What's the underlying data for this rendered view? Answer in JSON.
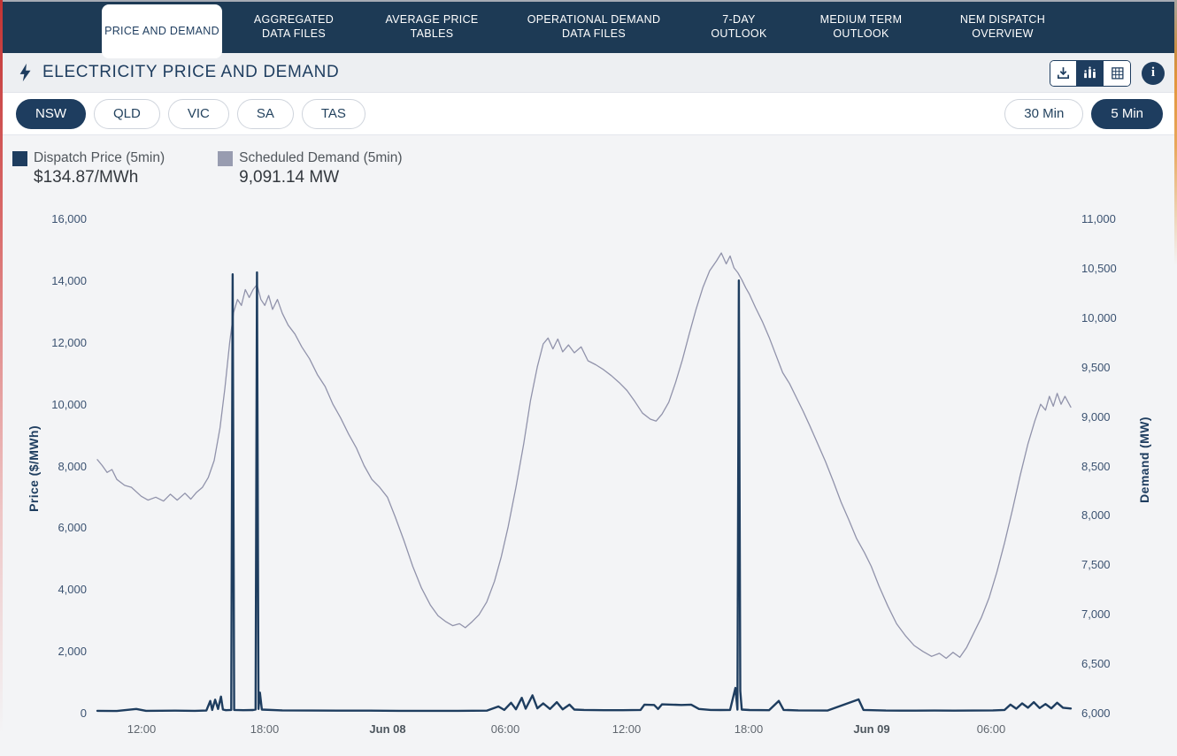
{
  "nav": {
    "tabs": [
      {
        "label": "PRICE AND DEMAND",
        "active": true
      },
      {
        "label": "AGGREGATED DATA FILES",
        "active": false
      },
      {
        "label": "AVERAGE PRICE TABLES",
        "active": false
      },
      {
        "label": "OPERATIONAL DEMAND DATA FILES",
        "active": false
      },
      {
        "label": "7-DAY OUTLOOK",
        "active": false
      },
      {
        "label": "MEDIUM TERM OUTLOOK",
        "active": false
      },
      {
        "label": "NEM DISPATCH OVERVIEW",
        "active": false
      }
    ]
  },
  "header": {
    "title": "ELECTRICITY PRICE AND DEMAND",
    "icons": [
      "download-icon",
      "chart-view-icon",
      "table-view-icon",
      "info-icon"
    ],
    "info_glyph": "i"
  },
  "regions": {
    "items": [
      {
        "label": "NSW",
        "active": true
      },
      {
        "label": "QLD",
        "active": false
      },
      {
        "label": "VIC",
        "active": false
      },
      {
        "label": "SA",
        "active": false
      },
      {
        "label": "TAS",
        "active": false
      }
    ]
  },
  "intervals": {
    "items": [
      {
        "label": "30 Min",
        "active": false
      },
      {
        "label": "5 Min",
        "active": true
      }
    ]
  },
  "legend": {
    "price": {
      "label": "Dispatch Price (5min)",
      "value": "$134.87/MWh",
      "color": "#1e3d5f"
    },
    "demand": {
      "label": "Scheduled Demand (5min)",
      "value": "9,091.14 MW",
      "color": "#989cb0"
    }
  },
  "colors": {
    "navy": "#1e3d5f",
    "nav_bg": "#1d3a55",
    "price_line": "#1e3d5f",
    "demand_line": "#9193ab",
    "chart_bg": "#f3f4f6"
  },
  "chart_data": {
    "type": "line",
    "title": "Electricity price and demand, NSW, 5 min dispatch, Jun 07 - Jun 09",
    "grid": false,
    "legend_position": "top-left",
    "x_axis": {
      "domain": [
        0,
        1
      ],
      "ticks": [
        {
          "label": "12:00",
          "x": 0.0455,
          "bold": false
        },
        {
          "label": "18:00",
          "x": 0.1718,
          "bold": false
        },
        {
          "label": "Jun 08",
          "x": 0.2982,
          "bold": true
        },
        {
          "label": "06:00",
          "x": 0.4191,
          "bold": false
        },
        {
          "label": "12:00",
          "x": 0.5436,
          "bold": false
        },
        {
          "label": "18:00",
          "x": 0.6691,
          "bold": false
        },
        {
          "label": "Jun 09",
          "x": 0.7955,
          "bold": true
        },
        {
          "label": "06:00",
          "x": 0.9182,
          "bold": false
        }
      ]
    },
    "y_left": {
      "label": "Price ($/MWh)",
      "range": [
        0,
        16000
      ],
      "ticks": [
        {
          "v": 16000,
          "label": "16,000"
        },
        {
          "v": 14000,
          "label": "14,000"
        },
        {
          "v": 12000,
          "label": "12,000"
        },
        {
          "v": 10000,
          "label": "10,000"
        },
        {
          "v": 8000,
          "label": "8,000"
        },
        {
          "v": 6000,
          "label": "6,000"
        },
        {
          "v": 4000,
          "label": "4,000"
        },
        {
          "v": 2000,
          "label": "2,000"
        },
        {
          "v": 0,
          "label": "0"
        }
      ]
    },
    "y_right": {
      "label": "Demand (MW)",
      "range": [
        6000,
        11000
      ],
      "ticks": [
        {
          "v": 11000,
          "label": "11,000"
        },
        {
          "v": 10500,
          "label": "10,500"
        },
        {
          "v": 10000,
          "label": "10,000"
        },
        {
          "v": 9500,
          "label": "9,500"
        },
        {
          "v": 9000,
          "label": "9,000"
        },
        {
          "v": 8500,
          "label": "8,500"
        },
        {
          "v": 8000,
          "label": "8,000"
        },
        {
          "v": 7500,
          "label": "7,500"
        },
        {
          "v": 7000,
          "label": "7,000"
        },
        {
          "v": 6500,
          "label": "6,500"
        },
        {
          "v": 6000,
          "label": "6,000"
        }
      ]
    },
    "series": [
      {
        "name": "Dispatch Price (5min)",
        "axis": "left",
        "color": "#1e3d5f",
        "width": 2.4,
        "current_value": 134.87,
        "points": [
          [
            0.0,
            60
          ],
          [
            0.02,
            55
          ],
          [
            0.04,
            120
          ],
          [
            0.05,
            60
          ],
          [
            0.08,
            65
          ],
          [
            0.1,
            60
          ],
          [
            0.112,
            70
          ],
          [
            0.116,
            380
          ],
          [
            0.118,
            90
          ],
          [
            0.121,
            420
          ],
          [
            0.124,
            120
          ],
          [
            0.127,
            520
          ],
          [
            0.129,
            100
          ],
          [
            0.132,
            80
          ],
          [
            0.1375,
            90
          ],
          [
            0.139,
            14190
          ],
          [
            0.1405,
            90
          ],
          [
            0.15,
            80
          ],
          [
            0.16,
            85
          ],
          [
            0.1625,
            100
          ],
          [
            0.164,
            14250
          ],
          [
            0.1655,
            120
          ],
          [
            0.167,
            650
          ],
          [
            0.169,
            100
          ],
          [
            0.19,
            75
          ],
          [
            0.22,
            70
          ],
          [
            0.25,
            65
          ],
          [
            0.28,
            65
          ],
          [
            0.31,
            60
          ],
          [
            0.34,
            60
          ],
          [
            0.37,
            60
          ],
          [
            0.4,
            65
          ],
          [
            0.412,
            200
          ],
          [
            0.418,
            90
          ],
          [
            0.425,
            320
          ],
          [
            0.43,
            110
          ],
          [
            0.436,
            480
          ],
          [
            0.44,
            130
          ],
          [
            0.447,
            560
          ],
          [
            0.452,
            140
          ],
          [
            0.458,
            300
          ],
          [
            0.465,
            120
          ],
          [
            0.472,
            340
          ],
          [
            0.478,
            110
          ],
          [
            0.485,
            260
          ],
          [
            0.49,
            100
          ],
          [
            0.5,
            90
          ],
          [
            0.52,
            80
          ],
          [
            0.54,
            80
          ],
          [
            0.558,
            90
          ],
          [
            0.562,
            260
          ],
          [
            0.572,
            250
          ],
          [
            0.576,
            120
          ],
          [
            0.58,
            270
          ],
          [
            0.59,
            260
          ],
          [
            0.6,
            250
          ],
          [
            0.61,
            260
          ],
          [
            0.618,
            120
          ],
          [
            0.63,
            90
          ],
          [
            0.64,
            85
          ],
          [
            0.65,
            90
          ],
          [
            0.6555,
            800
          ],
          [
            0.6575,
            100
          ],
          [
            0.659,
            13990
          ],
          [
            0.6605,
            700
          ],
          [
            0.662,
            100
          ],
          [
            0.67,
            85
          ],
          [
            0.69,
            80
          ],
          [
            0.7,
            380
          ],
          [
            0.705,
            90
          ],
          [
            0.72,
            75
          ],
          [
            0.75,
            70
          ],
          [
            0.782,
            430
          ],
          [
            0.787,
            90
          ],
          [
            0.81,
            70
          ],
          [
            0.84,
            65
          ],
          [
            0.86,
            70
          ],
          [
            0.88,
            65
          ],
          [
            0.9,
            70
          ],
          [
            0.92,
            75
          ],
          [
            0.932,
            90
          ],
          [
            0.938,
            260
          ],
          [
            0.944,
            130
          ],
          [
            0.95,
            300
          ],
          [
            0.956,
            160
          ],
          [
            0.962,
            340
          ],
          [
            0.968,
            150
          ],
          [
            0.974,
            280
          ],
          [
            0.98,
            140
          ],
          [
            0.986,
            320
          ],
          [
            0.992,
            160
          ],
          [
            1.0,
            135
          ]
        ]
      },
      {
        "name": "Scheduled Demand (5min)",
        "axis": "right",
        "color": "#9193ab",
        "width": 1.3,
        "current_value": 9091.14,
        "points": [
          [
            0.0,
            8560
          ],
          [
            0.005,
            8500
          ],
          [
            0.01,
            8430
          ],
          [
            0.015,
            8460
          ],
          [
            0.02,
            8360
          ],
          [
            0.028,
            8300
          ],
          [
            0.035,
            8280
          ],
          [
            0.045,
            8190
          ],
          [
            0.052,
            8150
          ],
          [
            0.06,
            8180
          ],
          [
            0.068,
            8140
          ],
          [
            0.075,
            8210
          ],
          [
            0.082,
            8150
          ],
          [
            0.09,
            8220
          ],
          [
            0.096,
            8160
          ],
          [
            0.102,
            8230
          ],
          [
            0.108,
            8280
          ],
          [
            0.114,
            8380
          ],
          [
            0.12,
            8550
          ],
          [
            0.126,
            8880
          ],
          [
            0.131,
            9280
          ],
          [
            0.136,
            9750
          ],
          [
            0.14,
            10050
          ],
          [
            0.144,
            10180
          ],
          [
            0.148,
            10120
          ],
          [
            0.152,
            10280
          ],
          [
            0.156,
            10200
          ],
          [
            0.16,
            10280
          ],
          [
            0.164,
            10330
          ],
          [
            0.168,
            10180
          ],
          [
            0.172,
            10120
          ],
          [
            0.176,
            10220
          ],
          [
            0.18,
            10080
          ],
          [
            0.185,
            10180
          ],
          [
            0.19,
            10040
          ],
          [
            0.196,
            9920
          ],
          [
            0.203,
            9830
          ],
          [
            0.21,
            9700
          ],
          [
            0.218,
            9580
          ],
          [
            0.226,
            9420
          ],
          [
            0.234,
            9300
          ],
          [
            0.242,
            9120
          ],
          [
            0.25,
            8980
          ],
          [
            0.258,
            8820
          ],
          [
            0.266,
            8680
          ],
          [
            0.274,
            8500
          ],
          [
            0.282,
            8360
          ],
          [
            0.29,
            8280
          ],
          [
            0.298,
            8180
          ],
          [
            0.306,
            7980
          ],
          [
            0.315,
            7740
          ],
          [
            0.324,
            7480
          ],
          [
            0.333,
            7260
          ],
          [
            0.342,
            7090
          ],
          [
            0.35,
            6980
          ],
          [
            0.358,
            6920
          ],
          [
            0.365,
            6880
          ],
          [
            0.372,
            6900
          ],
          [
            0.378,
            6860
          ],
          [
            0.385,
            6920
          ],
          [
            0.392,
            6990
          ],
          [
            0.4,
            7120
          ],
          [
            0.408,
            7330
          ],
          [
            0.415,
            7580
          ],
          [
            0.422,
            7880
          ],
          [
            0.43,
            8280
          ],
          [
            0.438,
            8720
          ],
          [
            0.445,
            9160
          ],
          [
            0.452,
            9500
          ],
          [
            0.458,
            9730
          ],
          [
            0.463,
            9790
          ],
          [
            0.468,
            9680
          ],
          [
            0.473,
            9780
          ],
          [
            0.478,
            9650
          ],
          [
            0.484,
            9720
          ],
          [
            0.49,
            9640
          ],
          [
            0.497,
            9700
          ],
          [
            0.504,
            9560
          ],
          [
            0.512,
            9520
          ],
          [
            0.52,
            9470
          ],
          [
            0.528,
            9410
          ],
          [
            0.536,
            9340
          ],
          [
            0.544,
            9260
          ],
          [
            0.552,
            9150
          ],
          [
            0.56,
            9030
          ],
          [
            0.568,
            8970
          ],
          [
            0.574,
            8950
          ],
          [
            0.58,
            9020
          ],
          [
            0.587,
            9140
          ],
          [
            0.594,
            9340
          ],
          [
            0.601,
            9570
          ],
          [
            0.608,
            9830
          ],
          [
            0.615,
            10080
          ],
          [
            0.622,
            10300
          ],
          [
            0.629,
            10470
          ],
          [
            0.636,
            10570
          ],
          [
            0.641,
            10650
          ],
          [
            0.646,
            10540
          ],
          [
            0.65,
            10620
          ],
          [
            0.654,
            10500
          ],
          [
            0.658,
            10450
          ],
          [
            0.662,
            10380
          ],
          [
            0.666,
            10300
          ],
          [
            0.67,
            10230
          ],
          [
            0.676,
            10100
          ],
          [
            0.683,
            9960
          ],
          [
            0.69,
            9800
          ],
          [
            0.697,
            9620
          ],
          [
            0.704,
            9440
          ],
          [
            0.711,
            9330
          ],
          [
            0.718,
            9190
          ],
          [
            0.725,
            9050
          ],
          [
            0.732,
            8900
          ],
          [
            0.74,
            8720
          ],
          [
            0.748,
            8540
          ],
          [
            0.756,
            8340
          ],
          [
            0.764,
            8130
          ],
          [
            0.772,
            7950
          ],
          [
            0.78,
            7760
          ],
          [
            0.788,
            7620
          ],
          [
            0.795,
            7480
          ],
          [
            0.803,
            7280
          ],
          [
            0.812,
            7080
          ],
          [
            0.821,
            6900
          ],
          [
            0.83,
            6780
          ],
          [
            0.839,
            6680
          ],
          [
            0.848,
            6620
          ],
          [
            0.857,
            6570
          ],
          [
            0.865,
            6600
          ],
          [
            0.872,
            6550
          ],
          [
            0.879,
            6610
          ],
          [
            0.886,
            6560
          ],
          [
            0.893,
            6660
          ],
          [
            0.9,
            6800
          ],
          [
            0.908,
            6960
          ],
          [
            0.916,
            7160
          ],
          [
            0.924,
            7420
          ],
          [
            0.932,
            7720
          ],
          [
            0.94,
            8050
          ],
          [
            0.948,
            8400
          ],
          [
            0.956,
            8720
          ],
          [
            0.963,
            8950
          ],
          [
            0.969,
            9120
          ],
          [
            0.974,
            9060
          ],
          [
            0.978,
            9200
          ],
          [
            0.982,
            9100
          ],
          [
            0.986,
            9230
          ],
          [
            0.99,
            9120
          ],
          [
            0.994,
            9200
          ],
          [
            1.0,
            9091
          ]
        ]
      }
    ]
  }
}
